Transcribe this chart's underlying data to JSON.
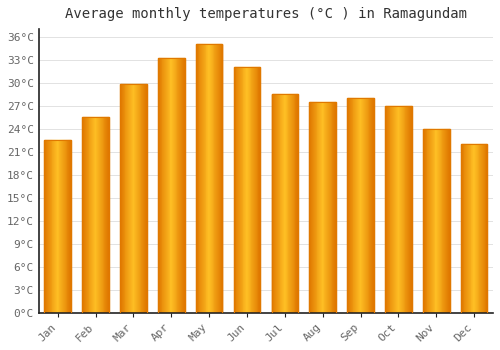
{
  "title": "Average monthly temperatures (°C ) in Ramagundam",
  "months": [
    "Jan",
    "Feb",
    "Mar",
    "Apr",
    "May",
    "Jun",
    "Jul",
    "Aug",
    "Sep",
    "Oct",
    "Nov",
    "Dec"
  ],
  "temperatures": [
    22.5,
    25.5,
    29.8,
    33.2,
    35.0,
    32.0,
    28.5,
    27.5,
    28.0,
    27.0,
    24.0,
    22.0
  ],
  "bar_color_main": "#FFC125",
  "bar_color_edge": "#E07800",
  "ylim": [
    0,
    37
  ],
  "yticks": [
    0,
    3,
    6,
    9,
    12,
    15,
    18,
    21,
    24,
    27,
    30,
    33,
    36
  ],
  "ytick_labels": [
    "0°C",
    "3°C",
    "6°C",
    "9°C",
    "12°C",
    "15°C",
    "18°C",
    "21°C",
    "24°C",
    "27°C",
    "30°C",
    "33°C",
    "36°C"
  ],
  "background_color": "#ffffff",
  "grid_color": "#dddddd",
  "title_fontsize": 10,
  "tick_fontsize": 8,
  "bar_width": 0.7,
  "axis_left_color": "#222222",
  "tick_label_color": "#666666"
}
